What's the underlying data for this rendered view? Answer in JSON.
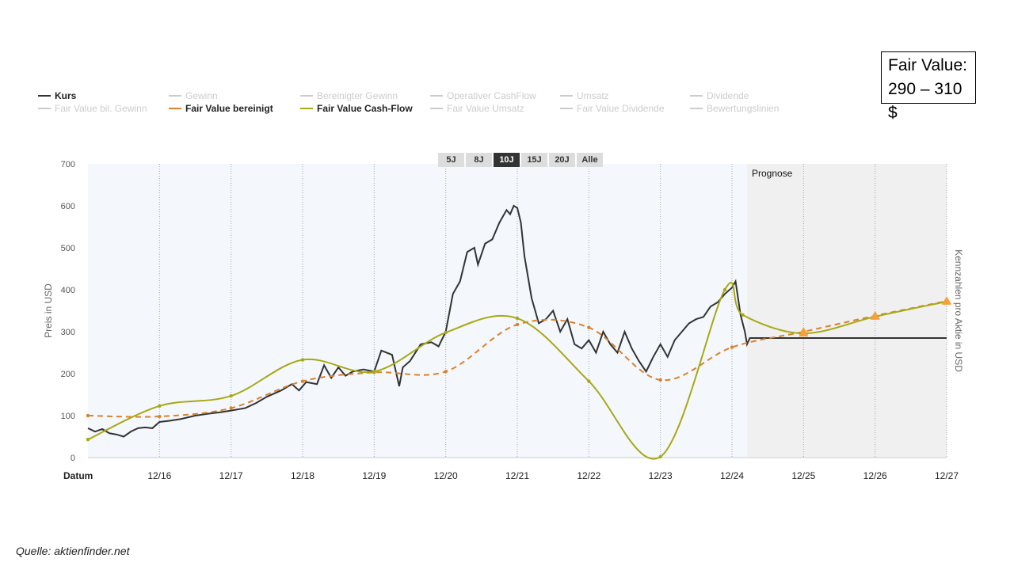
{
  "fair_value_box": {
    "line1": "Fair Value:",
    "line2": "290 – 310 $"
  },
  "source": "Quelle: aktienfinder.net",
  "legend": [
    {
      "label": "Kurs",
      "active": true,
      "color": "#333333"
    },
    {
      "label": "Gewinn",
      "active": false
    },
    {
      "label": "Bereinigter Gewinn",
      "active": false
    },
    {
      "label": "Operativer CashFlow",
      "active": false
    },
    {
      "label": "Umsatz",
      "active": false
    },
    {
      "label": "Dividende",
      "active": false
    },
    {
      "label": "Fair Value bil. Gewinn",
      "active": false
    },
    {
      "label": "Fair Value bereinigt",
      "active": true,
      "color": "#d9822b"
    },
    {
      "label": "Fair Value Cash-Flow",
      "active": true,
      "color": "#a8a814"
    },
    {
      "label": "Fair Value Umsatz",
      "active": false
    },
    {
      "label": "Fair Value Dividende",
      "active": false
    },
    {
      "label": "Bewertungslinien",
      "active": false
    }
  ],
  "ranges": [
    {
      "label": "5J"
    },
    {
      "label": "8J"
    },
    {
      "label": "10J",
      "active": true
    },
    {
      "label": "15J"
    },
    {
      "label": "20J"
    },
    {
      "label": "Alle"
    }
  ],
  "chart_data": {
    "type": "line",
    "ylabel": "Preis in USD",
    "ylabel_right": "Kennzahlen pro Aktie in USD",
    "xlabel": "Datum",
    "ylim": [
      0,
      700
    ],
    "yticks": [
      0,
      100,
      200,
      300,
      400,
      500,
      600,
      700
    ],
    "xlim": [
      2015.0,
      2027.0
    ],
    "xticks": [
      {
        "x": 2016,
        "label": "12/16"
      },
      {
        "x": 2017,
        "label": "12/17"
      },
      {
        "x": 2018,
        "label": "12/18"
      },
      {
        "x": 2019,
        "label": "12/19"
      },
      {
        "x": 2020,
        "label": "12/20"
      },
      {
        "x": 2021,
        "label": "12/21"
      },
      {
        "x": 2022,
        "label": "12/22"
      },
      {
        "x": 2023,
        "label": "12/23"
      },
      {
        "x": 2024,
        "label": "12/24"
      },
      {
        "x": 2025,
        "label": "12/25"
      },
      {
        "x": 2026,
        "label": "12/26"
      },
      {
        "x": 2027,
        "label": "12/27"
      }
    ],
    "forecast_start": 2024.21,
    "forecast_label": "Prognose",
    "series": [
      {
        "name": "Kurs",
        "color": "#333333",
        "x": [
          2015.0,
          2015.1,
          2015.2,
          2015.3,
          2015.4,
          2015.5,
          2015.6,
          2015.7,
          2015.8,
          2015.9,
          2016.0,
          2016.15,
          2016.3,
          2016.5,
          2016.7,
          2016.85,
          2017.0,
          2017.2,
          2017.35,
          2017.5,
          2017.7,
          2017.85,
          2017.95,
          2018.05,
          2018.2,
          2018.3,
          2018.4,
          2018.5,
          2018.6,
          2018.7,
          2018.85,
          2019.0,
          2019.1,
          2019.25,
          2019.35,
          2019.4,
          2019.5,
          2019.65,
          2019.8,
          2019.9,
          2020.0,
          2020.1,
          2020.2,
          2020.3,
          2020.4,
          2020.45,
          2020.55,
          2020.65,
          2020.75,
          2020.85,
          2020.9,
          2020.95,
          2021.0,
          2021.05,
          2021.1,
          2021.2,
          2021.3,
          2021.4,
          2021.5,
          2021.6,
          2021.7,
          2021.8,
          2021.9,
          2022.0,
          2022.1,
          2022.2,
          2022.3,
          2022.4,
          2022.5,
          2022.6,
          2022.7,
          2022.8,
          2022.9,
          2023.0,
          2023.1,
          2023.2,
          2023.3,
          2023.4,
          2023.5,
          2023.6,
          2023.7,
          2023.8,
          2023.9,
          2024.0,
          2024.05,
          2024.12,
          2024.18,
          2024.21,
          2024.25,
          2027.0
        ],
        "y": [
          70,
          62,
          68,
          58,
          55,
          50,
          62,
          70,
          72,
          70,
          85,
          88,
          92,
          100,
          105,
          108,
          112,
          118,
          130,
          145,
          160,
          175,
          160,
          180,
          175,
          220,
          190,
          215,
          195,
          205,
          210,
          205,
          255,
          245,
          170,
          215,
          230,
          270,
          275,
          265,
          300,
          390,
          420,
          490,
          500,
          460,
          510,
          520,
          560,
          590,
          580,
          600,
          595,
          560,
          480,
          380,
          320,
          330,
          350,
          300,
          330,
          270,
          260,
          280,
          250,
          300,
          270,
          250,
          300,
          260,
          230,
          205,
          240,
          270,
          240,
          280,
          300,
          320,
          330,
          335,
          360,
          370,
          390,
          405,
          420,
          340,
          300,
          270,
          285,
          285
        ]
      },
      {
        "name": "Fair Value bereinigt",
        "color": "#d9822b",
        "dashed": true,
        "x": [
          2015.0,
          2016,
          2017,
          2018,
          2019,
          2020,
          2021,
          2022,
          2023,
          2024,
          2025,
          2026,
          2027
        ],
        "y": [
          100,
          98,
          118,
          182,
          203,
          205,
          317,
          310,
          185,
          263,
          300,
          338,
          373
        ]
      },
      {
        "name": "Fair Value Cash-Flow",
        "color": "#a8a814",
        "x": [
          2015.0,
          2016,
          2017,
          2018,
          2019,
          2020,
          2021,
          2022,
          2023,
          2023.9,
          2024.15,
          2025,
          2026,
          2027
        ],
        "y": [
          43,
          123,
          147,
          233,
          205,
          298,
          332,
          182,
          2,
          400,
          340,
          296,
          336,
          372
        ]
      }
    ]
  }
}
